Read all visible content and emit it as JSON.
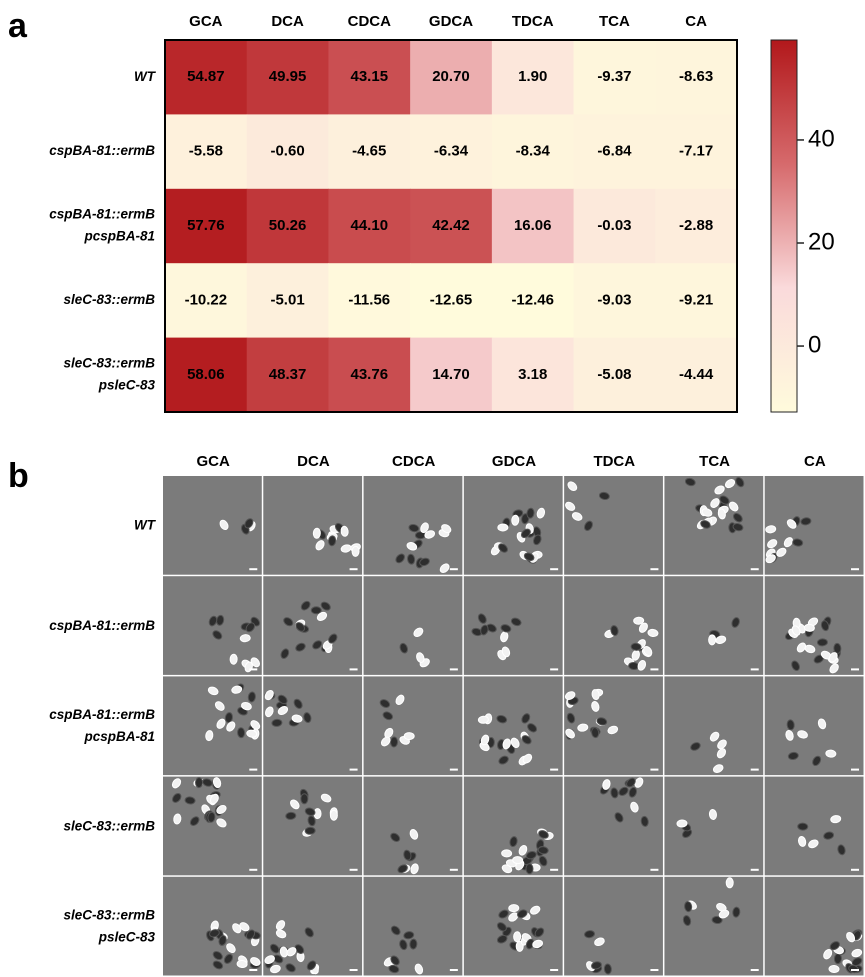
{
  "chart_data": {
    "type": "heatmap",
    "panel_label": "a",
    "columns": [
      "GCA",
      "DCA",
      "CDCA",
      "GDCA",
      "TDCA",
      "TCA",
      "CA"
    ],
    "rows": [
      [
        "WT"
      ],
      [
        "cspBA-81::ermB"
      ],
      [
        "cspBA-81::ermB",
        "pcspBA-81"
      ],
      [
        "sleC-83::ermB"
      ],
      [
        "sleC-83::ermB",
        "psleC-83"
      ]
    ],
    "values": [
      [
        54.87,
        49.95,
        43.15,
        20.7,
        1.9,
        -9.37,
        -8.63
      ],
      [
        -5.58,
        -0.6,
        -4.65,
        -6.34,
        -8.34,
        -6.84,
        -7.17
      ],
      [
        57.76,
        50.26,
        44.1,
        42.42,
        16.06,
        -0.03,
        -2.88
      ],
      [
        -10.22,
        -5.01,
        -11.56,
        -12.65,
        -12.46,
        -9.03,
        -9.21
      ],
      [
        58.06,
        48.37,
        43.76,
        14.7,
        3.18,
        -5.08,
        -4.44
      ]
    ],
    "value_labels": [
      [
        "54.87",
        "49.95",
        "43.15",
        "20.70",
        "1.90",
        "-9.37",
        "-8.63"
      ],
      [
        "-5.58",
        "-0.60",
        "-4.65",
        "-6.34",
        "-8.34",
        "-6.84",
        "-7.17"
      ],
      [
        "57.76",
        "50.26",
        "44.10",
        "42.42",
        "16.06",
        "-0.03",
        "-2.88"
      ],
      [
        "-10.22",
        "-5.01",
        "-11.56",
        "-12.65",
        "-12.46",
        "-9.03",
        "-9.21"
      ],
      [
        "58.06",
        "48.37",
        "43.76",
        "14.70",
        "3.18",
        "-5.08",
        "-4.44"
      ]
    ],
    "colorscale": [
      "#fffbdc",
      "#fadadb",
      "#d66a6c",
      "#b2181b"
    ],
    "colorbar_lim": [
      -12.8,
      59.4
    ],
    "colorbar_ticks": [
      0,
      20,
      40
    ]
  },
  "panel_b": {
    "label": "b"
  }
}
